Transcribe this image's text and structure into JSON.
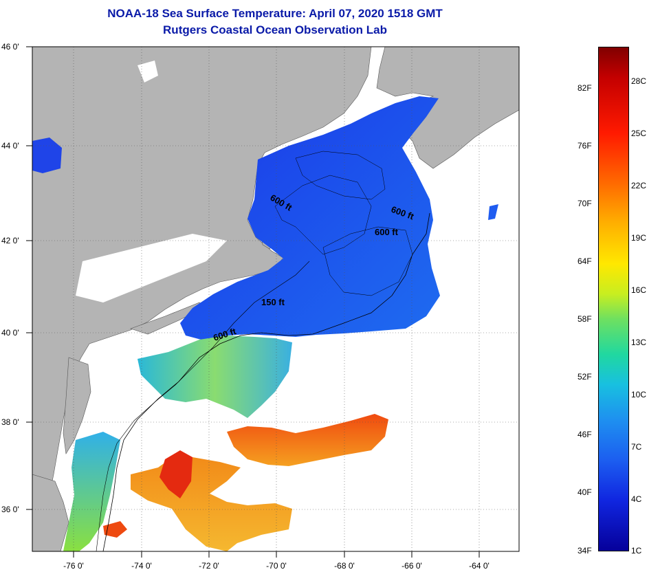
{
  "header": {
    "title": "NOAA-18 Sea Surface Temperature:  April 07, 2020 1518 GMT",
    "subtitle": "Rutgers Coastal Ocean Observation Lab"
  },
  "map": {
    "lat_labels": [
      "46 0'",
      "44 0'",
      "42 0'",
      "40 0'",
      "38 0'",
      "36 0'"
    ],
    "lon_labels": [
      "-76 0'",
      "-74 0'",
      "-72 0'",
      "-70 0'",
      "-68 0'",
      "-66 0'",
      "-64 0'"
    ],
    "contour_labels": [
      "600 ft",
      "600 ft",
      "600 ft",
      "150 ft",
      "600 ft"
    ],
    "colors": {
      "land": "#b4b4b4",
      "cloud": "#ffffff",
      "cold": "#1a4fe6",
      "warm": "#ee6a10"
    }
  },
  "legend": {
    "fahrenheit": [
      "82F",
      "76F",
      "70F",
      "64F",
      "58F",
      "52F",
      "46F",
      "40F",
      "34F"
    ],
    "celsius": [
      "28C",
      "25C",
      "22C",
      "19C",
      "16C",
      "13C",
      "10C",
      "7C",
      "4C",
      "1C"
    ]
  }
}
